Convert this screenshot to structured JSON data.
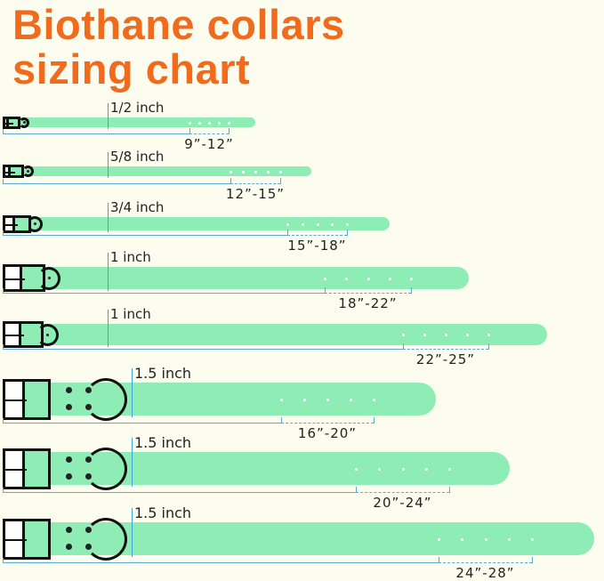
{
  "title": {
    "line1": "Biothane collars",
    "line2": "sizing chart"
  },
  "colors": {
    "title": "#f26a1c",
    "strap": "#8eedb5",
    "background": "#fdfdef",
    "measure_line": "#5aa9d6",
    "hardware": "#111111"
  },
  "collars": [
    {
      "width_label": "1/2 inch",
      "size_range": "9”-12”"
    },
    {
      "width_label": "5/8 inch",
      "size_range": "12”-15”"
    },
    {
      "width_label": "3/4 inch",
      "size_range": "15”-18”"
    },
    {
      "width_label": "1 inch",
      "size_range": "18”-22”"
    },
    {
      "width_label": "1 inch",
      "size_range": "22”-25”"
    },
    {
      "width_label": "1.5 inch",
      "size_range": "16”-20”"
    },
    {
      "width_label": "1.5 inch",
      "size_range": "20”-24”"
    },
    {
      "width_label": "1.5 inch",
      "size_range": "24”-28”"
    }
  ]
}
